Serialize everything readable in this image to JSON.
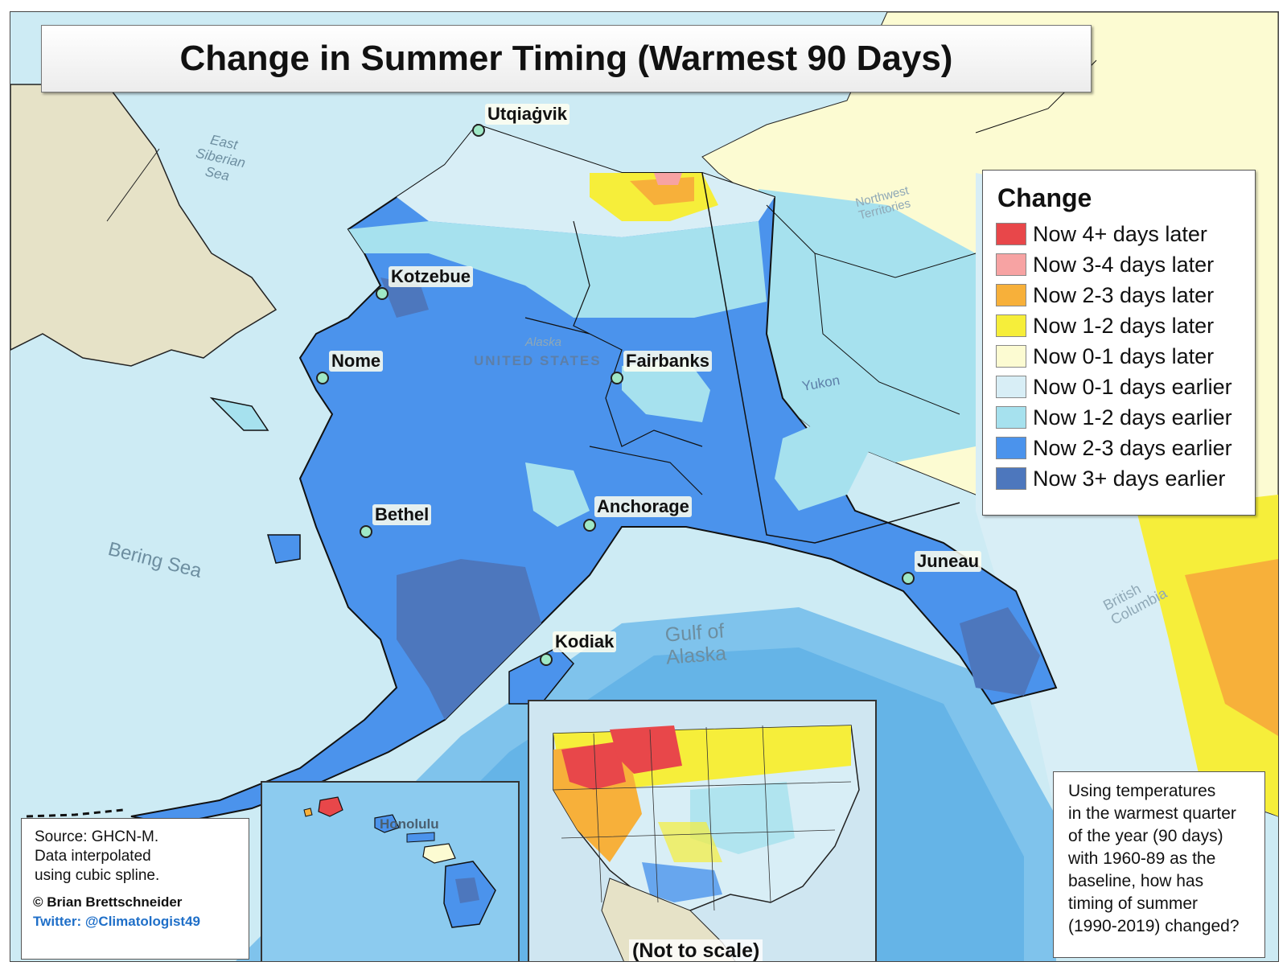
{
  "title": "Change in Summer Timing (Warmest 90 Days)",
  "legend": {
    "title": "Change",
    "items": [
      {
        "label": "Now 4+ days later",
        "color": "#e8474a"
      },
      {
        "label": "Now 3-4 days later",
        "color": "#f7a3a3"
      },
      {
        "label": "Now 2-3 days later",
        "color": "#f7b03a"
      },
      {
        "label": "Now 1-2 days later",
        "color": "#f6ee3a"
      },
      {
        "label": "Now 0-1 days later",
        "color": "#fcfbd2"
      },
      {
        "label": "Now 0-1 days earlier",
        "color": "#d8eef6"
      },
      {
        "label": "Now 1-2 days earlier",
        "color": "#a6e1ee"
      },
      {
        "label": "Now 2-3 days earlier",
        "color": "#4b93ec"
      },
      {
        "label": "Now 3+ days earlier",
        "color": "#4d77bd"
      }
    ]
  },
  "cities": [
    "Utqiaġvik",
    "Kotzebue",
    "Nome",
    "Fairbanks",
    "Bethel",
    "Anchorage",
    "Juneau",
    "Kodiak"
  ],
  "water_labels": {
    "east_siberian": [
      "East",
      "Siberian",
      "Sea"
    ],
    "bering": "Bering Sea",
    "gulf": [
      "Gulf of",
      "Alaska"
    ]
  },
  "region_labels": {
    "alaska": "Alaska",
    "us": "UNITED STATES",
    "nwt": [
      "Northwest",
      "Territories"
    ],
    "yukon": "Yukon",
    "bc": [
      "British",
      "Columbia"
    ]
  },
  "source": {
    "lines": [
      "Source: GHCN-M.",
      "Data interpolated",
      "using cubic spline."
    ],
    "author": "© Brian Brettschneider",
    "twitter": "Twitter: @Climatologist49"
  },
  "info": [
    "Using temperatures",
    "in the warmest quarter",
    "of the year (90 days)",
    "with 1960-89 as the",
    "baseline, how  has",
    "timing of summer",
    "(1990-2019) changed?"
  ],
  "inset_hawaii_label": "Honolulu",
  "inset_conus_label": "(Not to scale)"
}
